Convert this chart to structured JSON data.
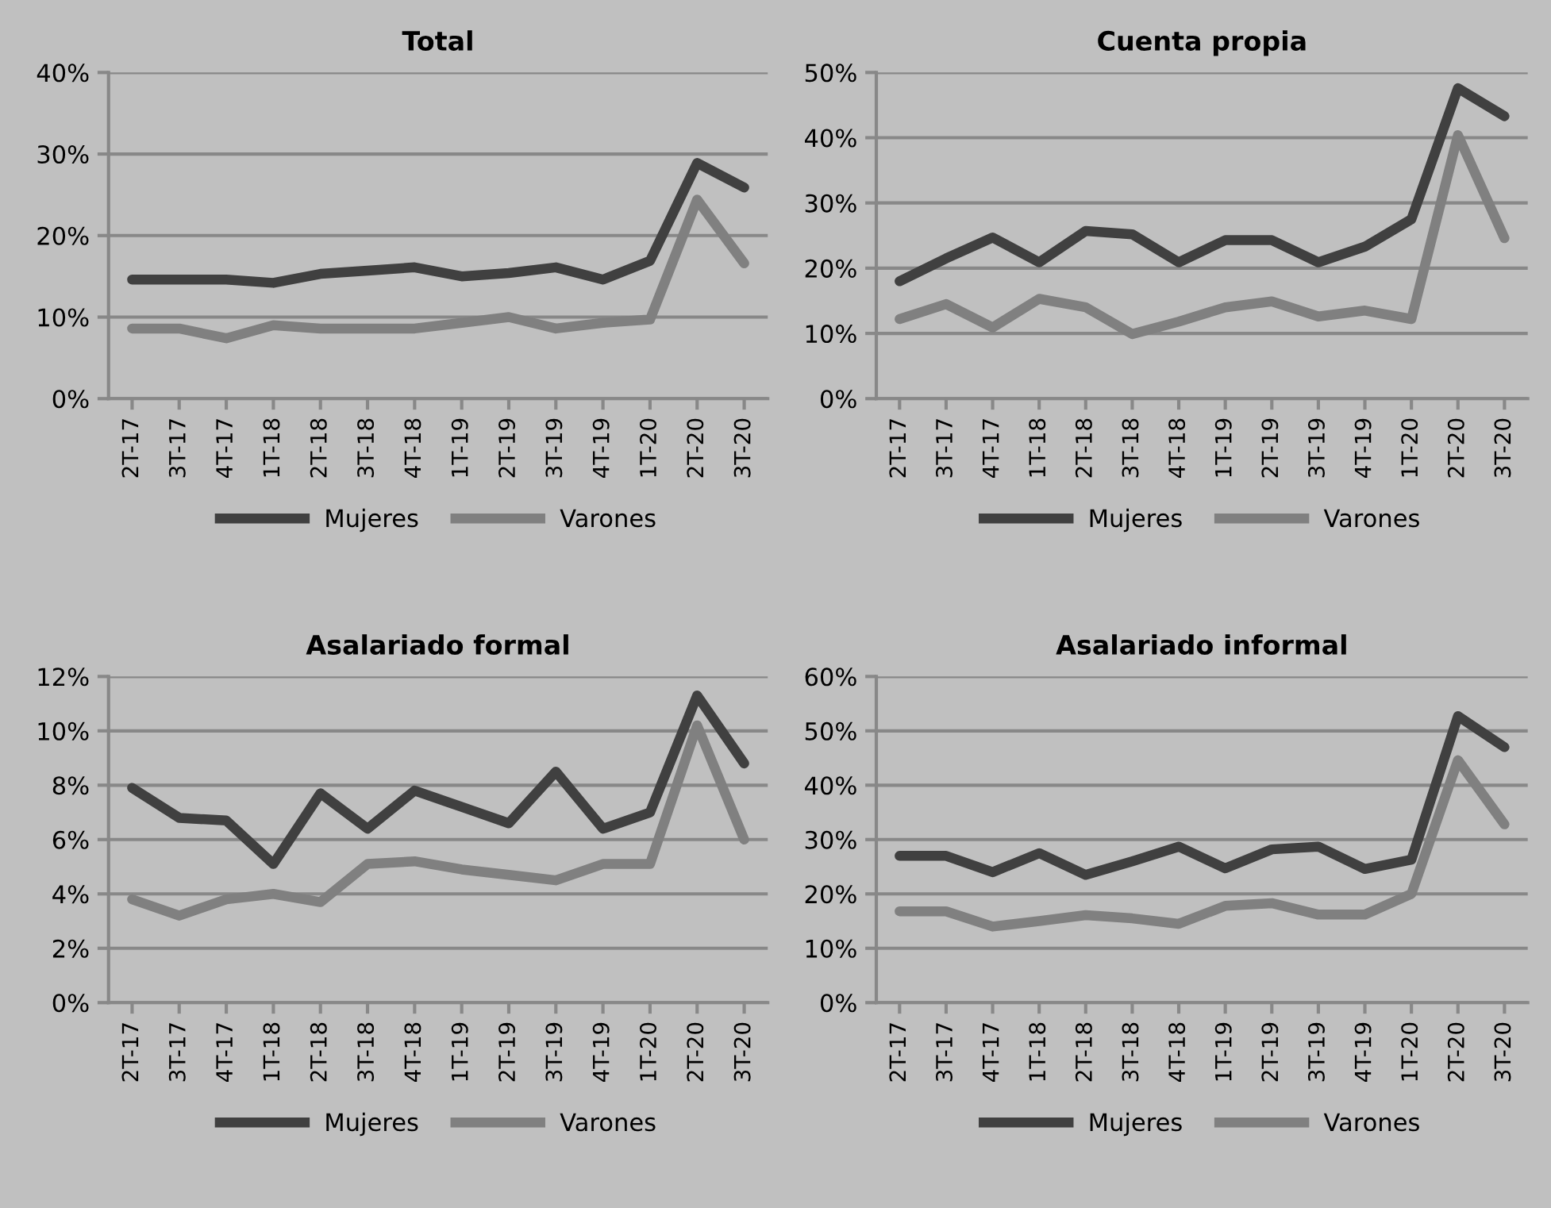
{
  "chart_data": [
    {
      "type": "line",
      "title": "Total",
      "categories": [
        "2T-17",
        "3T-17",
        "4T-17",
        "1T-18",
        "2T-18",
        "3T-18",
        "4T-18",
        "1T-19",
        "2T-19",
        "3T-19",
        "4T-19",
        "1T-20",
        "2T-20",
        "3T-20"
      ],
      "series": [
        {
          "name": "Mujeres",
          "color": "#404040",
          "values": [
            14.6,
            14.6,
            14.6,
            14.2,
            15.3,
            15.7,
            16.1,
            15.0,
            15.4,
            16.1,
            14.6,
            16.9,
            28.9,
            25.9
          ]
        },
        {
          "name": "Varones",
          "color": "#808080",
          "values": [
            8.6,
            8.6,
            7.4,
            9.0,
            8.6,
            8.6,
            8.6,
            9.3,
            10.0,
            8.6,
            9.3,
            9.7,
            24.4,
            16.6
          ]
        }
      ],
      "ylim": [
        0,
        40
      ],
      "yticks": [
        {
          "value": 0,
          "label": "0%"
        },
        {
          "value": 10,
          "label": "10%"
        },
        {
          "value": 20,
          "label": "20%"
        },
        {
          "value": 30,
          "label": "30%"
        },
        {
          "value": 40,
          "label": "40%"
        }
      ],
      "grid": "y",
      "legend": "bottom",
      "marker": "none",
      "line_style": "solid"
    },
    {
      "type": "line",
      "title": "Cuenta propia",
      "categories": [
        "2T-17",
        "3T-17",
        "4T-17",
        "1T-18",
        "2T-18",
        "3T-18",
        "4T-18",
        "1T-19",
        "2T-19",
        "3T-19",
        "4T-19",
        "1T-20",
        "2T-20",
        "3T-20"
      ],
      "series": [
        {
          "name": "Mujeres",
          "color": "#404040",
          "values": [
            18.0,
            21.5,
            24.7,
            20.9,
            25.7,
            25.2,
            20.9,
            24.3,
            24.3,
            20.9,
            23.3,
            27.5,
            47.6,
            43.3
          ]
        },
        {
          "name": "Varones",
          "color": "#808080",
          "values": [
            12.2,
            14.5,
            10.9,
            15.3,
            14.0,
            9.9,
            11.8,
            14.0,
            14.9,
            12.6,
            13.5,
            12.2,
            40.4,
            24.6
          ]
        }
      ],
      "ylim": [
        0,
        50
      ],
      "yticks": [
        {
          "value": 0,
          "label": "0%"
        },
        {
          "value": 10,
          "label": "10%"
        },
        {
          "value": 20,
          "label": "20%"
        },
        {
          "value": 30,
          "label": "30%"
        },
        {
          "value": 40,
          "label": "40%"
        },
        {
          "value": 50,
          "label": "50%"
        }
      ],
      "grid": "y",
      "legend": "bottom",
      "marker": "none",
      "line_style": "solid"
    },
    {
      "type": "line",
      "title": "Asalariado formal",
      "categories": [
        "2T-17",
        "3T-17",
        "4T-17",
        "1T-18",
        "2T-18",
        "3T-18",
        "4T-18",
        "1T-19",
        "2T-19",
        "3T-19",
        "4T-19",
        "1T-20",
        "2T-20",
        "3T-20"
      ],
      "series": [
        {
          "name": "Mujeres",
          "color": "#404040",
          "values": [
            7.9,
            6.8,
            6.7,
            5.1,
            7.7,
            6.4,
            7.8,
            7.2,
            6.6,
            8.5,
            6.4,
            7.0,
            11.3,
            8.8
          ]
        },
        {
          "name": "Varones",
          "color": "#808080",
          "values": [
            3.8,
            3.2,
            3.8,
            4.0,
            3.7,
            5.1,
            5.2,
            4.9,
            4.7,
            4.5,
            5.1,
            5.1,
            10.2,
            6.0
          ]
        }
      ],
      "ylim": [
        0,
        12
      ],
      "yticks": [
        {
          "value": 0,
          "label": "0%"
        },
        {
          "value": 2,
          "label": "2%"
        },
        {
          "value": 4,
          "label": "4%"
        },
        {
          "value": 6,
          "label": "6%"
        },
        {
          "value": 8,
          "label": "8%"
        },
        {
          "value": 10,
          "label": "10%"
        },
        {
          "value": 12,
          "label": "12%"
        }
      ],
      "grid": "y",
      "legend": "bottom",
      "marker": "none",
      "line_style": "solid"
    },
    {
      "type": "line",
      "title": "Asalariado informal",
      "categories": [
        "2T-17",
        "3T-17",
        "4T-17",
        "1T-18",
        "2T-18",
        "3T-18",
        "4T-18",
        "1T-19",
        "2T-19",
        "3T-19",
        "4T-19",
        "1T-20",
        "2T-20",
        "3T-20"
      ],
      "series": [
        {
          "name": "Mujeres",
          "color": "#404040",
          "values": [
            27,
            27,
            24,
            27.5,
            23.5,
            26,
            28.7,
            24.7,
            28.2,
            28.7,
            24.6,
            26.3,
            52.7,
            47
          ]
        },
        {
          "name": "Varones",
          "color": "#808080",
          "values": [
            16.8,
            16.8,
            14,
            15,
            16.1,
            15.5,
            14.5,
            17.8,
            18.3,
            16.2,
            16.2,
            20,
            44.6,
            32.8
          ]
        }
      ],
      "ylim": [
        0,
        60
      ],
      "yticks": [
        {
          "value": 0,
          "label": "0%"
        },
        {
          "value": 10,
          "label": "10%"
        },
        {
          "value": 20,
          "label": "20%"
        },
        {
          "value": 30,
          "label": "30%"
        },
        {
          "value": 40,
          "label": "40%"
        },
        {
          "value": 50,
          "label": "50%"
        },
        {
          "value": 60,
          "label": "60%"
        }
      ],
      "grid": "y",
      "legend": "bottom",
      "marker": "none",
      "line_style": "solid"
    }
  ]
}
